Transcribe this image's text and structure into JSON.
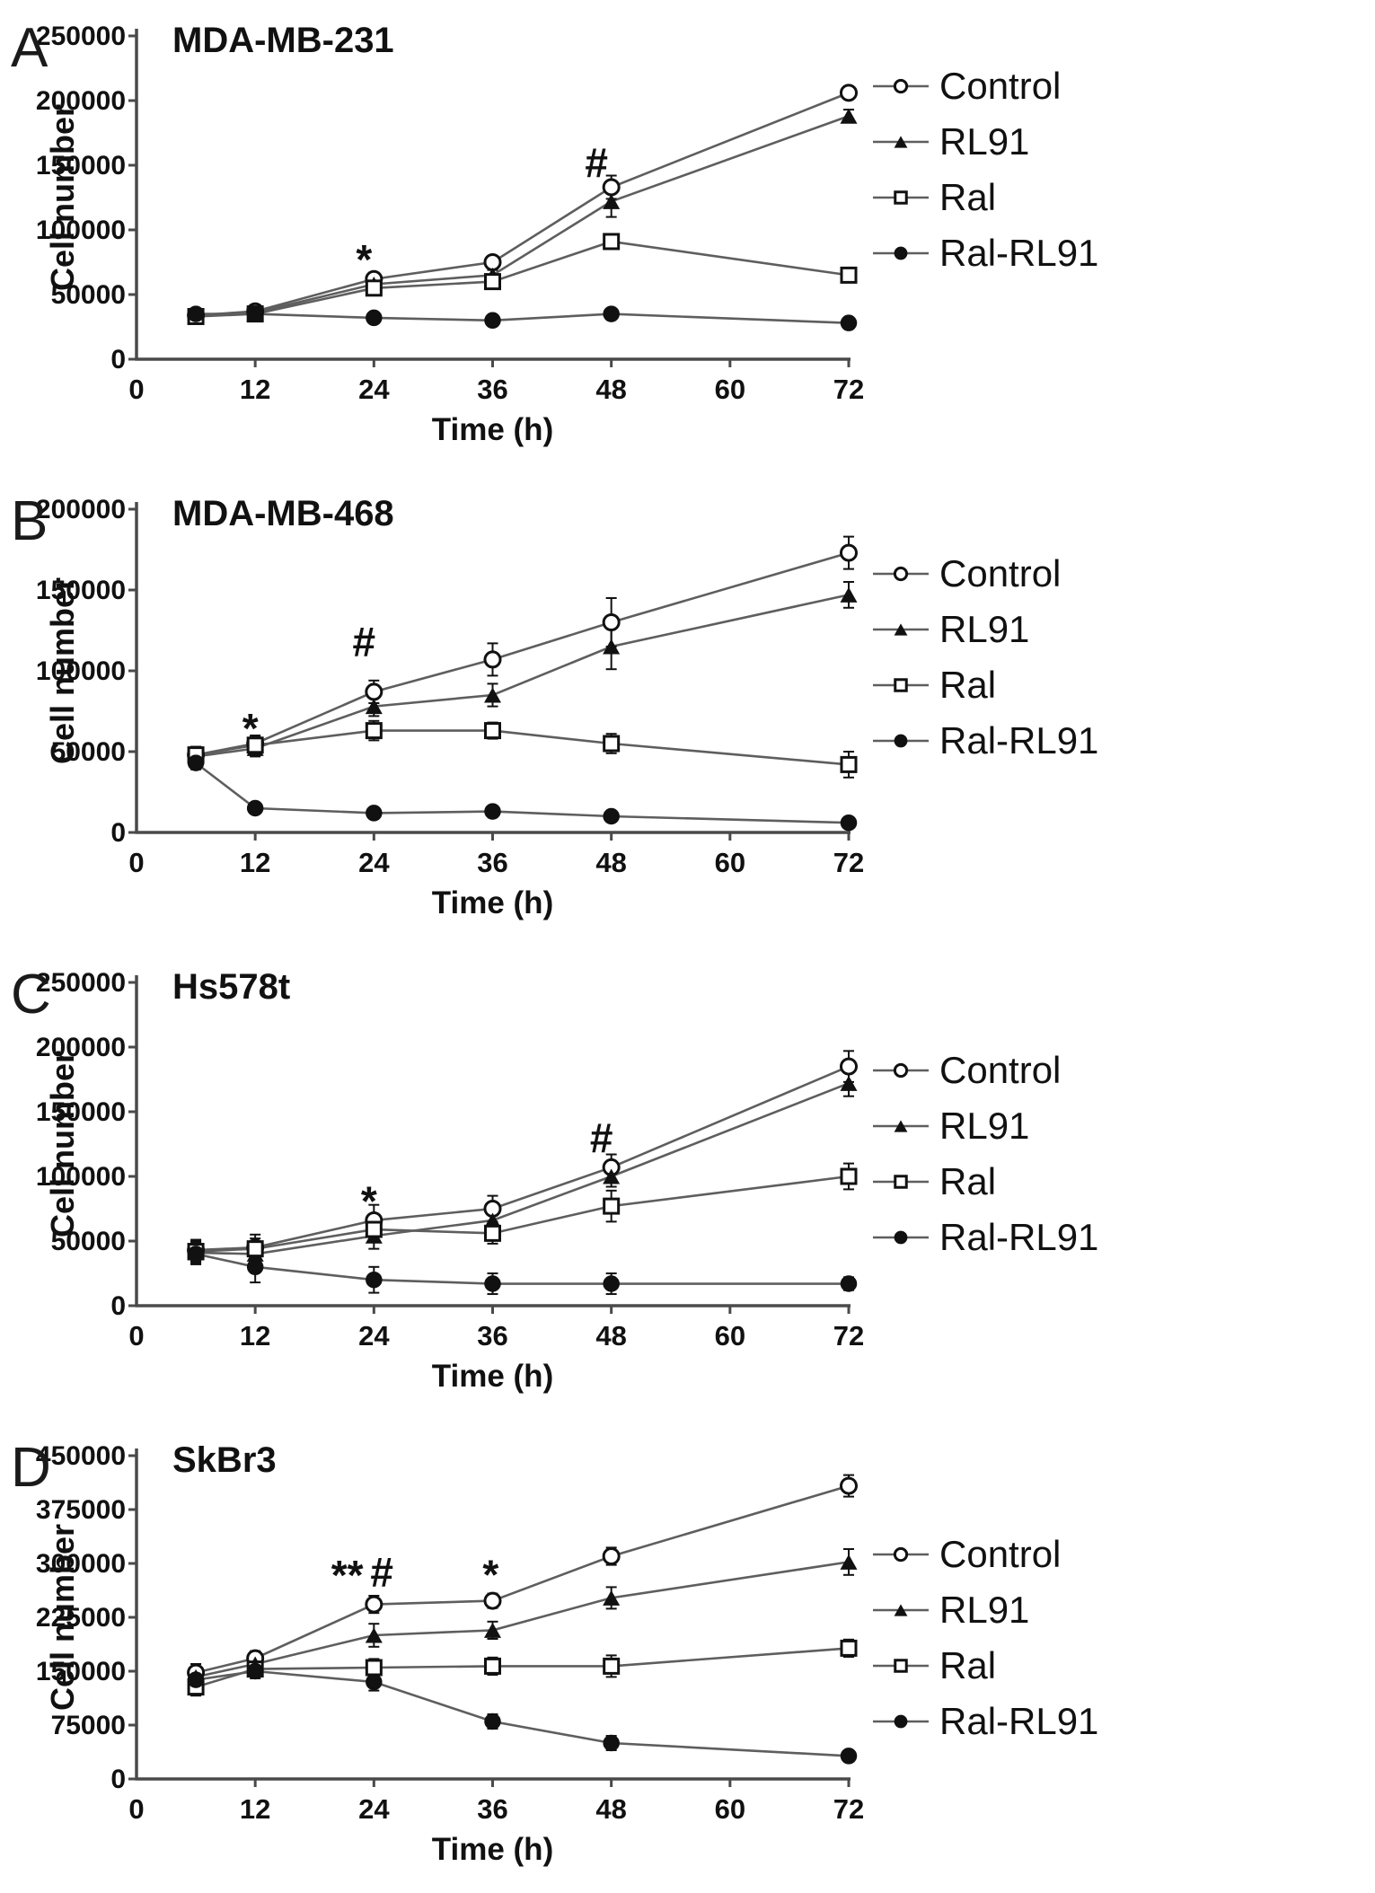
{
  "figure_title": "Cell proliferation time-course in four breast cancer cell lines",
  "style": {
    "background": "#ffffff",
    "line_color": "#5e5e5e",
    "marker_color": "#111111",
    "marker_fill_open": "#ffffff",
    "axis_color": "#4a4a4a",
    "text_color": "#111111"
  },
  "chart_data": [
    {
      "panel": "A",
      "type": "line",
      "title": "MDA-MB-231",
      "xlabel": "Time (h)",
      "ylabel": "Cell number",
      "x": [
        6,
        12,
        24,
        36,
        48,
        72
      ],
      "xticks": [
        0,
        12,
        24,
        36,
        48,
        60,
        72
      ],
      "xlim": [
        0,
        72
      ],
      "yticks": [
        0,
        50000,
        100000,
        150000,
        200000,
        250000
      ],
      "ylim": [
        0,
        250000
      ],
      "grid": false,
      "legend_position": "right",
      "legend_y": 96,
      "series": [
        {
          "name": "Control",
          "marker": "open-circle",
          "values": [
            34000,
            37000,
            62000,
            75000,
            133000,
            206000
          ],
          "errors": [
            3000,
            3000,
            5000,
            4000,
            9000,
            5000
          ]
        },
        {
          "name": "RL91",
          "marker": "filled-triangle",
          "values": [
            33000,
            36000,
            58000,
            65000,
            122000,
            188000
          ],
          "errors": [
            3000,
            3000,
            5000,
            4000,
            12000,
            5000
          ]
        },
        {
          "name": "Ral",
          "marker": "open-square",
          "values": [
            33000,
            35000,
            55000,
            60000,
            91000,
            65000
          ],
          "errors": [
            3000,
            3000,
            5000,
            4000,
            4000,
            5000
          ]
        },
        {
          "name": "Ral-RL91",
          "marker": "filled-circle",
          "values": [
            35000,
            35000,
            32000,
            30000,
            35000,
            28000
          ],
          "errors": [
            2000,
            2000,
            2000,
            2000,
            2000,
            2000
          ]
        }
      ],
      "annotations": [
        {
          "text": "*",
          "x": 23,
          "y": 84000
        },
        {
          "text": "#",
          "x": 46.5,
          "y": 152000
        }
      ]
    },
    {
      "panel": "B",
      "type": "line",
      "title": "MDA-MB-468",
      "xlabel": "Time (h)",
      "ylabel": "Cell number",
      "x": [
        6,
        12,
        24,
        36,
        48,
        72
      ],
      "xticks": [
        0,
        12,
        24,
        36,
        48,
        60,
        72
      ],
      "xlim": [
        0,
        72
      ],
      "yticks": [
        0,
        50000,
        100000,
        150000,
        200000
      ],
      "ylim": [
        0,
        200000
      ],
      "grid": false,
      "legend_position": "right",
      "legend_y": 112,
      "series": [
        {
          "name": "Control",
          "marker": "open-circle",
          "values": [
            48000,
            55000,
            87000,
            107000,
            130000,
            173000
          ],
          "errors": [
            5000,
            5000,
            7000,
            10000,
            15000,
            10000
          ]
        },
        {
          "name": "RL91",
          "marker": "filled-triangle",
          "values": [
            47000,
            52000,
            78000,
            85000,
            115000,
            147000
          ],
          "errors": [
            5000,
            5000,
            6000,
            7000,
            14000,
            8000
          ]
        },
        {
          "name": "Ral",
          "marker": "open-square",
          "values": [
            48000,
            54000,
            63000,
            63000,
            55000,
            42000
          ],
          "errors": [
            5000,
            5000,
            6000,
            5000,
            6000,
            8000
          ]
        },
        {
          "name": "Ral-RL91",
          "marker": "filled-circle",
          "values": [
            43000,
            15000,
            12000,
            13000,
            10000,
            6000
          ],
          "errors": [
            4000,
            3000,
            2000,
            2000,
            2000,
            2000
          ]
        }
      ],
      "annotations": [
        {
          "text": "*",
          "x": 11.5,
          "y": 70000
        },
        {
          "text": "#",
          "x": 23,
          "y": 118000
        }
      ]
    },
    {
      "panel": "C",
      "type": "line",
      "title": "Hs578t",
      "xlabel": "Time (h)",
      "ylabel": "Cell number",
      "x": [
        6,
        12,
        24,
        36,
        48,
        72
      ],
      "xticks": [
        0,
        12,
        24,
        36,
        48,
        60,
        72
      ],
      "xlim": [
        0,
        72
      ],
      "yticks": [
        0,
        50000,
        100000,
        150000,
        200000,
        250000
      ],
      "ylim": [
        0,
        250000
      ],
      "grid": false,
      "legend_position": "right",
      "legend_y": 138,
      "series": [
        {
          "name": "Control",
          "marker": "open-circle",
          "values": [
            43000,
            45000,
            66000,
            75000,
            107000,
            185000
          ],
          "errors": [
            8000,
            10000,
            12000,
            10000,
            10000,
            12000
          ]
        },
        {
          "name": "RL91",
          "marker": "filled-triangle",
          "values": [
            41000,
            40000,
            54000,
            66000,
            100000,
            172000
          ],
          "errors": [
            8000,
            10000,
            10000,
            8000,
            8000,
            10000
          ]
        },
        {
          "name": "Ral",
          "marker": "open-square",
          "values": [
            42000,
            44000,
            59000,
            56000,
            77000,
            100000
          ],
          "errors": [
            8000,
            8000,
            8000,
            8000,
            12000,
            10000
          ]
        },
        {
          "name": "Ral-RL91",
          "marker": "filled-circle",
          "values": [
            40000,
            30000,
            20000,
            17000,
            17000,
            17000
          ],
          "errors": [
            8000,
            12000,
            10000,
            8000,
            8000,
            5000
          ]
        }
      ],
      "annotations": [
        {
          "text": "*",
          "x": 23.5,
          "y": 88000
        },
        {
          "text": "#",
          "x": 47,
          "y": 130000
        }
      ]
    },
    {
      "panel": "D",
      "type": "line",
      "title": "SkBr3",
      "xlabel": "Time (h)",
      "ylabel": "Cell number",
      "x": [
        6,
        12,
        24,
        36,
        48,
        72
      ],
      "xticks": [
        0,
        12,
        24,
        36,
        48,
        60,
        72
      ],
      "xlim": [
        0,
        72
      ],
      "yticks": [
        0,
        75000,
        150000,
        225000,
        300000,
        375000,
        450000
      ],
      "ylim": [
        0,
        450000
      ],
      "grid": false,
      "legend_position": "right",
      "legend_y": 150,
      "series": [
        {
          "name": "Control",
          "marker": "open-circle",
          "values": [
            148000,
            168000,
            243000,
            248000,
            310000,
            408000
          ],
          "errors": [
            12000,
            10000,
            12000,
            10000,
            12000,
            15000
          ]
        },
        {
          "name": "RL91",
          "marker": "filled-triangle",
          "values": [
            142000,
            160000,
            200000,
            207000,
            252000,
            302000
          ],
          "errors": [
            12000,
            10000,
            16000,
            12000,
            15000,
            18000
          ]
        },
        {
          "name": "Ral",
          "marker": "open-square",
          "values": [
            128000,
            153000,
            155000,
            157000,
            157000,
            182000
          ],
          "errors": [
            12000,
            10000,
            12000,
            12000,
            15000,
            12000
          ]
        },
        {
          "name": "Ral-RL91",
          "marker": "filled-circle",
          "values": [
            138000,
            150000,
            135000,
            80000,
            50000,
            32000
          ],
          "errors": [
            10000,
            10000,
            12000,
            10000,
            10000,
            5000
          ]
        }
      ],
      "annotations": [
        {
          "text": "**",
          "x": 21.3,
          "y": 296000
        },
        {
          "text": "#",
          "x": 24.8,
          "y": 288000
        },
        {
          "text": "*",
          "x": 35.8,
          "y": 297000
        }
      ]
    }
  ]
}
